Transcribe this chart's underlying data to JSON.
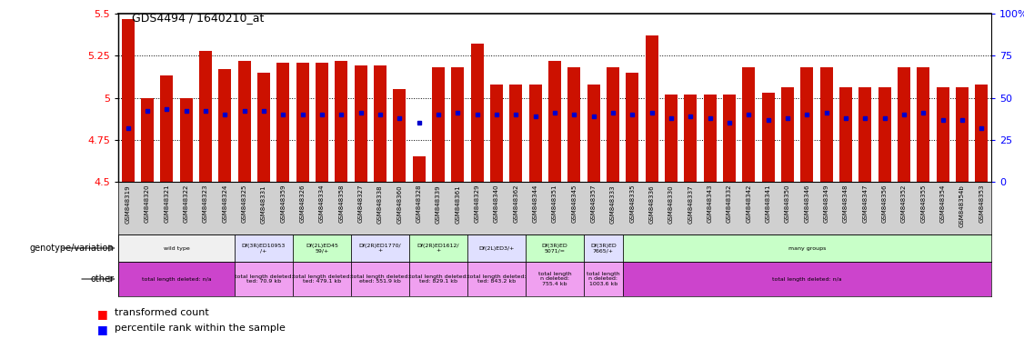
{
  "title": "GDS4494 / 1640210_at",
  "ylim": [
    4.5,
    5.5
  ],
  "yticks_left": [
    4.5,
    4.75,
    5.0,
    5.25,
    5.5
  ],
  "ytick_labels_left": [
    "4.5",
    "4.75",
    "5",
    "5.25",
    "5.5"
  ],
  "yticks_right": [
    4.5,
    4.75,
    5.0,
    5.25,
    5.5
  ],
  "ytick_labels_right": [
    "0",
    "25",
    "50",
    "75",
    "100%"
  ],
  "samples": [
    "GSM848319",
    "GSM848320",
    "GSM848321",
    "GSM848322",
    "GSM848323",
    "GSM848324",
    "GSM848325",
    "GSM848331",
    "GSM848359",
    "GSM848326",
    "GSM848334",
    "GSM848358",
    "GSM848327",
    "GSM848338",
    "GSM848360",
    "GSM848328",
    "GSM848339",
    "GSM848361",
    "GSM848329",
    "GSM848340",
    "GSM848362",
    "GSM848344",
    "GSM848351",
    "GSM848345",
    "GSM848357",
    "GSM848333",
    "GSM848335",
    "GSM848336",
    "GSM848330",
    "GSM848337",
    "GSM848343",
    "GSM848332",
    "GSM848342",
    "GSM848341",
    "GSM848350",
    "GSM848346",
    "GSM848349",
    "GSM848348",
    "GSM848347",
    "GSM848356",
    "GSM848352",
    "GSM848355",
    "GSM848354",
    "GSM848354b",
    "GSM848353"
  ],
  "bar_heights": [
    5.47,
    5.0,
    5.13,
    5.0,
    5.28,
    5.17,
    5.22,
    5.15,
    5.21,
    5.21,
    5.21,
    5.22,
    5.19,
    5.19,
    5.05,
    4.65,
    5.18,
    5.18,
    5.32,
    5.08,
    5.08,
    5.08,
    5.22,
    5.18,
    5.08,
    5.18,
    5.15,
    5.37,
    5.02,
    5.02,
    5.02,
    5.02,
    5.18,
    5.03,
    5.06,
    5.18,
    5.18,
    5.06,
    5.06,
    5.06,
    5.18,
    5.18,
    5.06,
    5.06,
    5.08
  ],
  "percentile_values": [
    4.82,
    4.92,
    4.93,
    4.92,
    4.92,
    4.9,
    4.92,
    4.92,
    4.9,
    4.9,
    4.9,
    4.9,
    4.91,
    4.9,
    4.88,
    4.85,
    4.9,
    4.91,
    4.9,
    4.9,
    4.9,
    4.89,
    4.91,
    4.9,
    4.89,
    4.91,
    4.9,
    4.91,
    4.88,
    4.89,
    4.88,
    4.85,
    4.9,
    4.87,
    4.88,
    4.9,
    4.91,
    4.88,
    4.88,
    4.88,
    4.9,
    4.91,
    4.87,
    4.87,
    4.82
  ],
  "geno_groups": [
    {
      "label": "wild type",
      "start": 0,
      "end": 5,
      "color": "#f0f0f0"
    },
    {
      "label": "Df(3R)ED10953\n/+",
      "start": 6,
      "end": 8,
      "color": "#e0e0ff"
    },
    {
      "label": "Df(2L)ED45\n59/+",
      "start": 9,
      "end": 11,
      "color": "#c8ffc8"
    },
    {
      "label": "Df(2R)ED1770/\n+",
      "start": 12,
      "end": 14,
      "color": "#e0e0ff"
    },
    {
      "label": "Df(2R)ED1612/\n+",
      "start": 15,
      "end": 17,
      "color": "#c8ffc8"
    },
    {
      "label": "Df(2L)ED3/+",
      "start": 18,
      "end": 20,
      "color": "#e0e0ff"
    },
    {
      "label": "Df(3R)ED\n5071/=",
      "start": 21,
      "end": 23,
      "color": "#c8ffc8"
    },
    {
      "label": "Df(3R)ED\n7665/+",
      "start": 24,
      "end": 25,
      "color": "#e0e0ff"
    },
    {
      "label": "many groups",
      "start": 26,
      "end": 44,
      "color": "#c8ffc8"
    }
  ],
  "other_groups": [
    {
      "label": "total length deleted: n/a",
      "start": 0,
      "end": 5,
      "color": "#cc44cc"
    },
    {
      "label": "total length deleted:\nted: 70.9 kb",
      "start": 6,
      "end": 8,
      "color": "#f0a0f0"
    },
    {
      "label": "total length deleted:\nted: 479.1 kb",
      "start": 9,
      "end": 11,
      "color": "#f0a0f0"
    },
    {
      "label": "total length deleted:\neted: 551.9 kb",
      "start": 12,
      "end": 14,
      "color": "#f0a0f0"
    },
    {
      "label": "total length deleted:\nted: 829.1 kb",
      "start": 15,
      "end": 17,
      "color": "#f0a0f0"
    },
    {
      "label": "total length deleted:\nted: 843.2 kb",
      "start": 18,
      "end": 20,
      "color": "#f0a0f0"
    },
    {
      "label": "total length\nn deleted:\n755.4 kb",
      "start": 21,
      "end": 23,
      "color": "#f0a0f0"
    },
    {
      "label": "total length\nn deleted:\n1003.6 kb",
      "start": 24,
      "end": 25,
      "color": "#f0a0f0"
    },
    {
      "label": "total length deleted: n/a",
      "start": 26,
      "end": 44,
      "color": "#cc44cc"
    }
  ],
  "bar_color": "#cc1100",
  "percentile_color": "#0000cc",
  "dotted_line_color": "#333333",
  "xlabel_bg": "#d0d0d0",
  "chart_bg": "#ffffff",
  "left_label_color": "#555555"
}
